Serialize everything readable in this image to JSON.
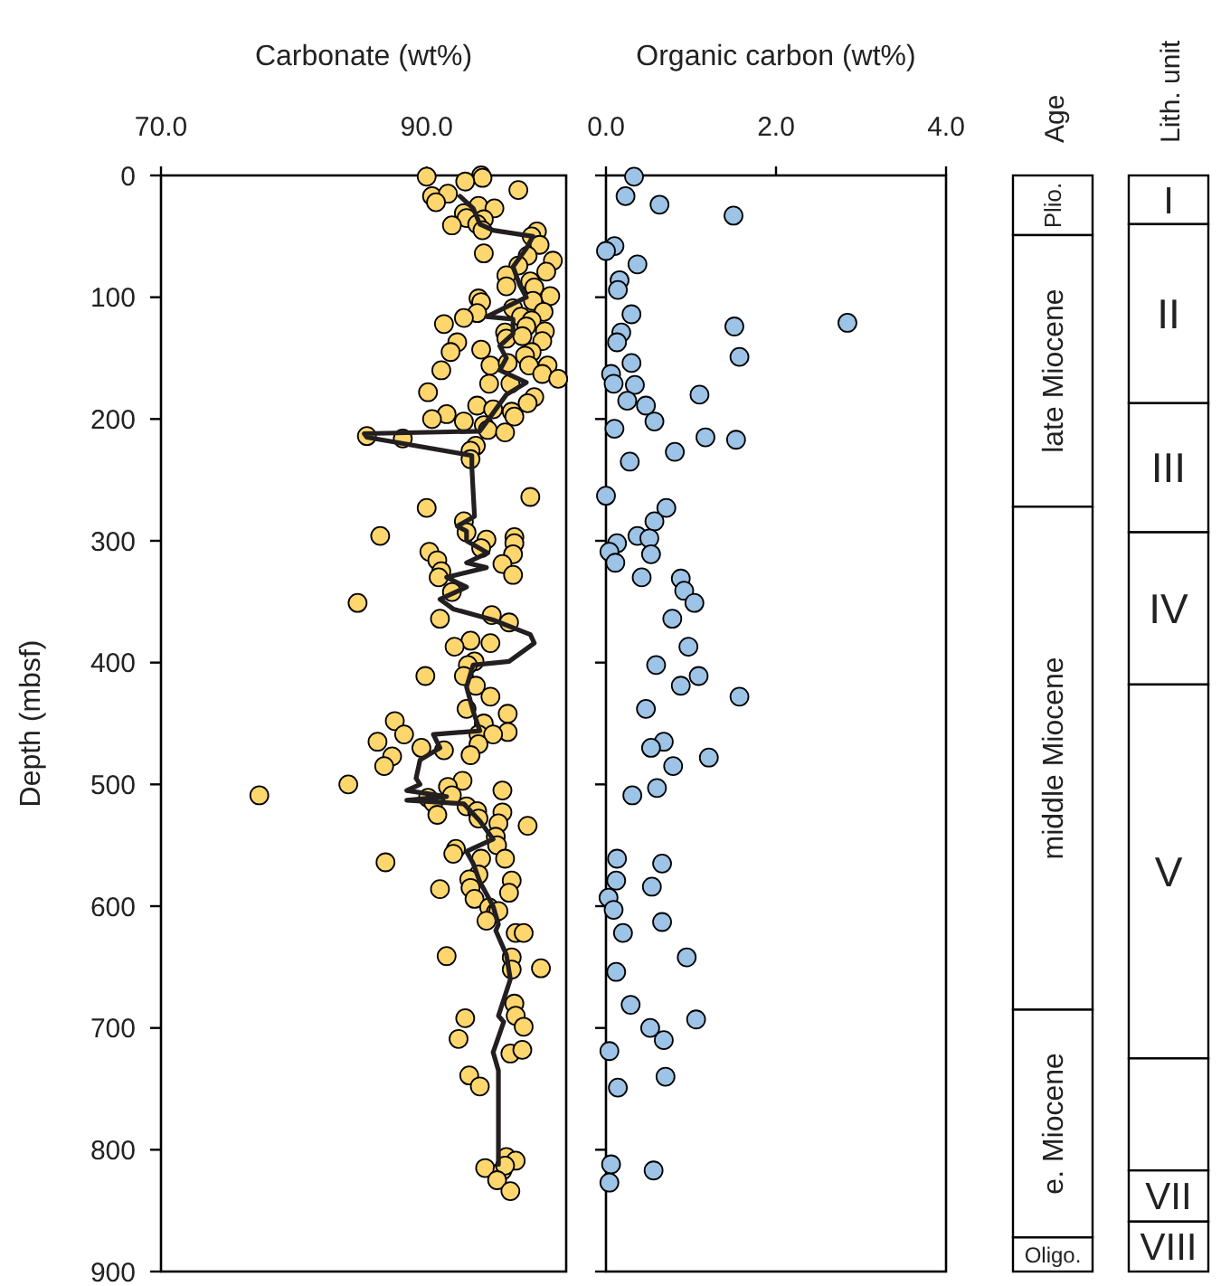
{
  "chart_data": [
    {
      "type": "scatter",
      "xlabel": "Carbonate (wt%)",
      "ylabel": "Depth (mbsf)",
      "xlim": [
        70,
        100.5
      ],
      "xticks": [
        {
          "value": 70,
          "label": "70.0"
        },
        {
          "value": 90,
          "label": "90.0"
        }
      ],
      "ylim": [
        900,
        0
      ],
      "yticks": [
        0,
        100,
        200,
        300,
        400,
        500,
        600,
        700,
        800,
        900
      ],
      "grid": false,
      "series": [
        {
          "type": "scatter",
          "color": "#fdd66e",
          "marker": "circle",
          "x": [
            90.0,
            94.1,
            94.2,
            92.9,
            96.9,
            90.4,
            91.6,
            90.7,
            93.9,
            95.1,
            92.8,
            93.0,
            94.3,
            93.8,
            94.2,
            91.9,
            98.3,
            97.9,
            98.5,
            94.3,
            97.6,
            99.5,
            96.9,
            99.0,
            96.0,
            97.8,
            96.0,
            98.1,
            99.3,
            98.0,
            93.9,
            94.1,
            93.8,
            92.8,
            98.8,
            96.5,
            97.1,
            97.9,
            97.5,
            91.3,
            98.9,
            95.9,
            96.0,
            97.2,
            98.7,
            92.3,
            91.8,
            94.1,
            97.9,
            97.4,
            94.8,
            96.1,
            97.7,
            99.1,
            98.7,
            99.9,
            91.1,
            94.7,
            96.3,
            98.1,
            97.6,
            90.1,
            93.8,
            95.0,
            96.4,
            96.6,
            91.5,
            90.4,
            92.8,
            94.3,
            94.6,
            95.9,
            85.5,
            88.2,
            93.7,
            93.3,
            93.3,
            97.8,
            90.0,
            92.8,
            93.0,
            86.5,
            96.6,
            94.5,
            96.6,
            94.1,
            90.2,
            96.5,
            90.8,
            91.1,
            95.7,
            96.5,
            90.9,
            91.9,
            84.8,
            94.9,
            91.0,
            96.2,
            93.3,
            94.8,
            92.1,
            93.6,
            93.1,
            89.9,
            92.8,
            93.7,
            94.8,
            93.0,
            96.1,
            94.3,
            96.1,
            87.6,
            88.3,
            93.9,
            95.0,
            93.9,
            86.3,
            89.6,
            91.3,
            93.3,
            87.4,
            86.8,
            92.7,
            84.1,
            77.4,
            91.6,
            91.9,
            95.7,
            90.1,
            90.5,
            90.8,
            93.0,
            93.8,
            95.7,
            93.9,
            95.4,
            97.6,
            95.2,
            95.3,
            92.2,
            92.0,
            95.9,
            94.1,
            86.9,
            93.9,
            96.4,
            93.2,
            93.3,
            91.0,
            96.2,
            93.6,
            94.7,
            95.2,
            95.4,
            94.5,
            96.7,
            97.3,
            91.5,
            96.4,
            96.4,
            98.6,
            96.6,
            96.7,
            97.3,
            92.9,
            92.4,
            96.3,
            97.2,
            93.2,
            94.0,
            94.4,
            96.0,
            96.7,
            95.7,
            95.9,
            95.3,
            96.3
          ],
          "values": [
            1,
            0,
            2,
            5,
            12,
            17,
            15,
            22,
            25,
            27,
            31,
            35,
            36,
            40,
            45,
            41,
            46,
            50,
            57,
            64,
            66,
            70,
            74,
            79,
            82,
            87,
            91,
            92,
            99,
            103,
            101,
            104,
            113,
            117,
            112,
            109,
            116,
            119,
            124,
            122,
            128,
            129,
            134,
            132,
            136,
            137,
            145,
            143,
            145,
            148,
            156,
            154,
            156,
            156,
            163,
            167,
            160,
            171,
            171,
            182,
            187,
            178,
            189,
            192,
            194,
            198,
            196,
            200,
            202,
            205,
            209,
            211,
            214,
            216,
            222,
            226,
            233,
            264,
            273,
            284,
            293,
            296,
            297,
            299,
            302,
            306,
            309,
            311,
            316,
            325,
            319,
            328,
            330,
            342,
            351,
            361,
            364,
            367,
            382,
            384,
            387,
            399,
            402,
            411,
            411,
            419,
            428,
            438,
            442,
            450,
            457,
            448,
            459,
            459,
            459,
            467,
            465,
            470,
            472,
            476,
            477,
            485,
            497,
            500,
            509,
            502,
            509,
            505,
            511,
            515,
            525,
            518,
            522,
            523,
            528,
            532,
            534,
            543,
            550,
            553,
            557,
            561,
            561,
            564,
            574,
            579,
            578,
            585,
            586,
            589,
            594,
            601,
            605,
            604,
            612,
            622,
            622,
            641,
            642,
            652,
            651,
            680,
            690,
            699,
            692,
            709,
            721,
            718,
            739,
            748,
            815,
            806,
            809,
            817,
            813,
            825,
            834
          ]
        },
        {
          "type": "line",
          "color": "#231f20",
          "marker": "none",
          "line_style": "solid",
          "x": [
            92.5,
            93.5,
            94.0,
            95.0,
            98.0,
            97.5,
            96.5,
            97.0,
            97.5,
            94.5,
            96.5,
            96.5,
            95.5,
            96.0,
            95.5,
            97.5,
            96.0,
            95.0,
            94.0,
            85.3,
            85.5,
            93.4,
            93.4,
            93.6,
            92.3,
            93.0,
            93.0,
            94.6,
            93.0,
            94.5,
            91.5,
            93.0,
            91.0,
            92.0,
            95.0,
            97.8,
            98.1,
            96.2,
            93.5,
            93.0,
            93.5,
            94.0,
            90.5,
            91.0,
            89.5,
            89.2,
            89.5,
            88.5,
            91.5,
            88.5,
            92.8,
            94.0,
            95.0,
            93.0,
            93.5,
            94.0,
            95.0,
            95.4,
            95.2,
            96.0,
            96.3,
            95.4,
            95.8,
            95.0,
            95.4,
            95.4,
            95.4
          ],
          "values": [
            17,
            27,
            40,
            45,
            50,
            60,
            75,
            90,
            100,
            116,
            118,
            130,
            140,
            150,
            160,
            170,
            180,
            195,
            210,
            212,
            215,
            230,
            240,
            280,
            288,
            292,
            300,
            310,
            318,
            322,
            330,
            338,
            348,
            356,
            365,
            377,
            384,
            399,
            402,
            420,
            440,
            456,
            459,
            470,
            480,
            495,
            500,
            505,
            510,
            513,
            516,
            530,
            545,
            555,
            565,
            580,
            600,
            615,
            620,
            640,
            660,
            690,
            695,
            720,
            735,
            800,
            812
          ]
        }
      ]
    },
    {
      "type": "scatter",
      "xlabel": "Organic carbon (wt%)",
      "xlim": [
        0,
        4
      ],
      "xticks": [
        {
          "value": 0,
          "label": "0.0"
        },
        {
          "value": 2,
          "label": "2.0"
        },
        {
          "value": 4,
          "label": "4.0"
        }
      ],
      "ylim": [
        900,
        0
      ],
      "yticks": [
        0,
        100,
        200,
        300,
        400,
        500,
        600,
        700,
        800,
        900
      ],
      "tick_labels": "x",
      "grid": false,
      "series": [
        {
          "type": "scatter",
          "color": "#9dc3e6",
          "marker": "circle",
          "x": [
            0.33,
            0.23,
            0.63,
            1.5,
            0.1,
            0.0,
            0.37,
            0.16,
            0.14,
            0.3,
            0.18,
            0.13,
            1.51,
            2.84,
            1.57,
            0.3,
            0.06,
            0.09,
            0.34,
            0.25,
            0.47,
            0.57,
            1.1,
            0.1,
            1.17,
            1.53,
            0.28,
            0.81,
            0.0,
            0.71,
            0.57,
            0.37,
            0.51,
            0.13,
            0.04,
            0.11,
            0.53,
            0.42,
            0.88,
            0.92,
            1.04,
            0.78,
            0.97,
            0.59,
            1.09,
            0.88,
            1.57,
            0.47,
            0.68,
            0.53,
            1.21,
            0.79,
            0.6,
            0.31,
            0.13,
            0.66,
            0.12,
            0.54,
            0.03,
            0.09,
            0.66,
            0.2,
            0.95,
            0.12,
            0.29,
            0.52,
            1.06,
            0.68,
            0.04,
            0.7,
            0.14,
            0.06,
            0.56,
            0.04
          ],
          "values": [
            1,
            17,
            24,
            33,
            58,
            62,
            73,
            86,
            94,
            114,
            129,
            137,
            124,
            121,
            149,
            154,
            163,
            171,
            172,
            185,
            189,
            202,
            180,
            208,
            215,
            217,
            235,
            227,
            263,
            273,
            284,
            296,
            298,
            302,
            309,
            318,
            311,
            330,
            331,
            341,
            351,
            364,
            387,
            402,
            411,
            419,
            428,
            438,
            465,
            470,
            478,
            485,
            503,
            509,
            561,
            565,
            579,
            584,
            593,
            603,
            613,
            622,
            642,
            654,
            681,
            700,
            693,
            710,
            719,
            740,
            749,
            812,
            817,
            827
          ]
        }
      ]
    },
    {
      "type": "bar",
      "stacked": true,
      "categories": [
        "Age",
        "Lith. unit"
      ],
      "ylim": [
        900,
        0
      ],
      "tick_labels": "x",
      "series": [
        {
          "name": "Plio.",
          "color": "#ffffff",
          "values": [
            49,
            null
          ]
        },
        {
          "name": "late Miocene",
          "color": "#ffffff",
          "values": [
            223,
            null
          ]
        },
        {
          "name": "middle Miocene",
          "color": "#ffffff",
          "values": [
            413,
            null
          ]
        },
        {
          "name": "e. Miocene",
          "color": "#ffffff",
          "values": [
            187,
            null
          ]
        },
        {
          "name": "Oligo.",
          "color": "#ffffff",
          "values": [
            28,
            null
          ]
        },
        {
          "name": "I",
          "color": "#ffffff",
          "values": [
            null,
            40
          ]
        },
        {
          "name": "II",
          "color": "#ffffff",
          "values": [
            null,
            147
          ]
        },
        {
          "name": "III",
          "color": "#ffffff",
          "values": [
            null,
            106
          ]
        },
        {
          "name": "IV",
          "color": "#ffffff",
          "values": [
            null,
            125
          ]
        },
        {
          "name": "V",
          "color": "#ffffff",
          "values": [
            null,
            307
          ]
        },
        {
          "color": "#ffffff",
          "values": [
            null,
            92
          ]
        },
        {
          "name": "VII",
          "color": "#ffffff",
          "values": [
            null,
            42
          ]
        },
        {
          "name": "VIII",
          "color": "#ffffff",
          "values": [
            null,
            41
          ]
        }
      ]
    }
  ]
}
